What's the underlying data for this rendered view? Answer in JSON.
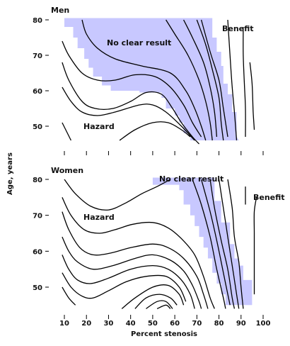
{
  "chart_data": [
    {
      "panel_label": "Men",
      "type": "contour",
      "region_labels": {
        "no_clear": "No clear result",
        "benefit": "Benefit",
        "hazard": "Hazard"
      },
      "ylim": [
        45,
        81
      ],
      "yticks": [
        50,
        60,
        70,
        80
      ],
      "shade_color": "#c8c8ff",
      "shaded_region": [
        [
          10,
          80.5
        ],
        [
          77,
          80.5
        ],
        [
          77,
          75
        ],
        [
          79,
          75
        ],
        [
          79,
          71
        ],
        [
          81,
          71
        ],
        [
          81,
          67
        ],
        [
          82,
          67
        ],
        [
          82,
          62
        ],
        [
          84,
          62
        ],
        [
          84,
          59
        ],
        [
          86,
          59
        ],
        [
          86,
          54
        ],
        [
          88,
          54
        ],
        [
          88,
          47
        ],
        [
          89,
          46
        ],
        [
          67,
          46
        ],
        [
          67,
          48
        ],
        [
          64,
          48
        ],
        [
          64,
          51
        ],
        [
          62,
          51
        ],
        [
          62,
          53
        ],
        [
          60,
          53
        ],
        [
          60,
          55
        ],
        [
          56,
          55
        ],
        [
          56,
          58
        ],
        [
          54,
          58
        ],
        [
          54,
          59.5
        ],
        [
          44,
          59.5
        ],
        [
          44,
          60
        ],
        [
          31,
          60
        ],
        [
          31,
          61.5
        ],
        [
          27,
          61.5
        ],
        [
          27,
          64
        ],
        [
          23,
          64
        ],
        [
          23,
          66.5
        ],
        [
          21,
          66.5
        ],
        [
          21,
          69
        ],
        [
          19,
          69
        ],
        [
          19,
          72
        ],
        [
          16,
          72
        ],
        [
          16,
          75
        ],
        [
          14,
          75
        ],
        [
          14,
          78
        ],
        [
          10,
          78
        ]
      ],
      "contours": [
        [
          [
            9,
            51
          ],
          [
            13,
            46
          ]
        ],
        [
          [
            9,
            61
          ],
          [
            13,
            57
          ],
          [
            18,
            54
          ],
          [
            25,
            53
          ],
          [
            33,
            54
          ],
          [
            44,
            56
          ],
          [
            50,
            56
          ],
          [
            56,
            54
          ],
          [
            63,
            50
          ],
          [
            69,
            46
          ]
        ],
        [
          [
            9,
            68
          ],
          [
            12,
            63
          ],
          [
            18,
            57
          ],
          [
            24,
            55
          ],
          [
            32,
            55
          ],
          [
            40,
            57
          ],
          [
            47,
            59.5
          ],
          [
            54,
            59
          ],
          [
            59,
            55
          ],
          [
            63,
            51
          ],
          [
            68,
            47
          ],
          [
            71,
            45
          ]
        ],
        [
          [
            35,
            46
          ],
          [
            42,
            49
          ],
          [
            50,
            51
          ],
          [
            57,
            51
          ],
          [
            63,
            49
          ],
          [
            67,
            47
          ]
        ],
        [
          [
            9,
            74
          ],
          [
            12,
            70
          ],
          [
            18,
            65
          ],
          [
            25,
            63
          ],
          [
            33,
            63
          ],
          [
            42,
            64.5
          ],
          [
            51,
            64
          ],
          [
            58,
            61
          ],
          [
            64,
            56
          ],
          [
            68,
            51
          ],
          [
            72,
            47
          ]
        ],
        [
          [
            18,
            80
          ],
          [
            20,
            76
          ],
          [
            25,
            72
          ],
          [
            33,
            69
          ],
          [
            45,
            67
          ],
          [
            58,
            65
          ],
          [
            65,
            60
          ],
          [
            69,
            55
          ],
          [
            72,
            50
          ],
          [
            74,
            46
          ]
        ],
        [
          [
            56,
            80
          ],
          [
            60,
            76
          ],
          [
            66,
            70
          ],
          [
            71,
            63
          ],
          [
            74,
            57
          ],
          [
            76,
            51
          ],
          [
            77,
            46
          ]
        ],
        [
          [
            64,
            80
          ],
          [
            68,
            75
          ],
          [
            73,
            68
          ],
          [
            76,
            61
          ],
          [
            78,
            54
          ],
          [
            79,
            47
          ]
        ],
        [
          [
            70,
            80
          ],
          [
            74,
            73
          ],
          [
            77,
            66
          ],
          [
            80,
            58
          ],
          [
            81,
            51
          ],
          [
            82,
            46
          ]
        ],
        [
          [
            72,
            80
          ],
          [
            76,
            71
          ],
          [
            80,
            63
          ],
          [
            82,
            55
          ],
          [
            84,
            47
          ]
        ],
        [
          [
            84,
            80
          ],
          [
            85,
            70
          ],
          [
            86,
            61
          ],
          [
            87,
            54
          ],
          [
            88,
            46
          ]
        ],
        [
          [
            91,
            78
          ],
          [
            91,
            70
          ],
          [
            91.5,
            62
          ],
          [
            92,
            55
          ],
          [
            92,
            47
          ]
        ],
        [
          [
            94,
            68
          ],
          [
            95,
            62
          ],
          [
            95.5,
            54
          ],
          [
            96,
            49
          ]
        ]
      ]
    },
    {
      "panel_label": "Women",
      "type": "contour",
      "region_labels": {
        "no_clear": "No clear result",
        "benefit": "Benefit",
        "hazard": "Hazard"
      },
      "ylim": [
        43,
        81
      ],
      "yticks": [
        50,
        60,
        70,
        80
      ],
      "shade_color": "#c8c8ff",
      "shaded_region": [
        [
          50,
          80.5
        ],
        [
          78,
          80.5
        ],
        [
          78,
          74
        ],
        [
          81,
          74
        ],
        [
          81,
          68
        ],
        [
          85,
          68
        ],
        [
          85,
          62
        ],
        [
          87,
          62
        ],
        [
          87,
          58
        ],
        [
          89,
          58
        ],
        [
          89,
          56
        ],
        [
          91,
          56
        ],
        [
          91,
          52
        ],
        [
          95,
          52
        ],
        [
          95,
          45
        ],
        [
          83,
          45
        ],
        [
          83,
          48
        ],
        [
          81,
          48
        ],
        [
          81,
          51
        ],
        [
          79,
          51
        ],
        [
          79,
          54
        ],
        [
          77,
          54
        ],
        [
          77,
          58
        ],
        [
          75,
          58
        ],
        [
          75,
          61
        ],
        [
          73,
          61
        ],
        [
          73,
          64
        ],
        [
          71,
          64
        ],
        [
          71,
          67
        ],
        [
          69,
          67
        ],
        [
          69,
          70
        ],
        [
          67,
          70
        ],
        [
          67,
          73
        ],
        [
          64,
          73
        ],
        [
          64,
          77
        ],
        [
          62,
          77
        ],
        [
          62,
          78.5
        ],
        [
          50,
          78.5
        ]
      ],
      "contours": [
        [
          [
            10,
            80
          ],
          [
            15,
            76
          ],
          [
            22,
            72.5
          ],
          [
            30,
            71.5
          ],
          [
            38,
            73.5
          ],
          [
            45,
            76
          ],
          [
            52,
            78
          ],
          [
            58,
            80
          ]
        ],
        [
          [
            9,
            75
          ],
          [
            13,
            70
          ],
          [
            19,
            66
          ],
          [
            26,
            65
          ],
          [
            33,
            66
          ],
          [
            41,
            67.5
          ],
          [
            50,
            68
          ],
          [
            57,
            66.5
          ],
          [
            63,
            63.5
          ],
          [
            69,
            59
          ],
          [
            73,
            53
          ],
          [
            76,
            47
          ],
          [
            78,
            44
          ]
        ],
        [
          [
            9,
            71
          ],
          [
            12,
            66
          ],
          [
            17,
            61
          ],
          [
            23,
            59
          ],
          [
            31,
            59.5
          ],
          [
            40,
            61
          ],
          [
            50,
            62
          ],
          [
            57,
            61
          ],
          [
            64,
            58
          ],
          [
            70,
            53
          ],
          [
            73,
            48
          ],
          [
            75,
            44
          ]
        ],
        [
          [
            9,
            64
          ],
          [
            12,
            60
          ],
          [
            16,
            57
          ],
          [
            23,
            55
          ],
          [
            32,
            56
          ],
          [
            42,
            58
          ],
          [
            50,
            59
          ],
          [
            58,
            57.5
          ],
          [
            64,
            54.5
          ],
          [
            68,
            50.5
          ],
          [
            71,
            46
          ],
          [
            72,
            44
          ]
        ],
        [
          [
            9,
            59
          ],
          [
            12,
            55
          ],
          [
            16,
            52
          ],
          [
            22,
            51
          ],
          [
            30,
            52.5
          ],
          [
            40,
            55
          ],
          [
            50,
            56
          ],
          [
            57,
            55
          ],
          [
            63,
            52
          ],
          [
            67,
            48
          ],
          [
            69,
            44
          ]
        ],
        [
          [
            9,
            54
          ],
          [
            13,
            50
          ],
          [
            18,
            47.5
          ],
          [
            23,
            47
          ],
          [
            30,
            49
          ],
          [
            38,
            51.5
          ],
          [
            47,
            53
          ],
          [
            56,
            53
          ],
          [
            62,
            50
          ],
          [
            65,
            46
          ]
        ],
        [
          [
            9,
            50
          ],
          [
            12,
            47
          ],
          [
            15,
            45
          ]
        ],
        [
          [
            36,
            44
          ],
          [
            42,
            47
          ],
          [
            50,
            50
          ],
          [
            57,
            50.5
          ],
          [
            62,
            48
          ],
          [
            64,
            45
          ]
        ],
        [
          [
            42,
            44
          ],
          [
            47,
            47
          ],
          [
            53,
            48
          ],
          [
            58,
            47
          ],
          [
            61,
            45
          ]
        ],
        [
          [
            47,
            44
          ],
          [
            52,
            46
          ],
          [
            56,
            46
          ],
          [
            59,
            44
          ]
        ],
        [
          [
            52,
            44
          ],
          [
            56,
            45
          ],
          [
            58,
            44
          ]
        ],
        [
          [
            68,
            80
          ],
          [
            72,
            73
          ],
          [
            76,
            64
          ],
          [
            79,
            55
          ],
          [
            82,
            47
          ],
          [
            83,
            44
          ]
        ],
        [
          [
            72,
            80
          ],
          [
            76,
            71
          ],
          [
            79,
            63
          ],
          [
            82,
            54
          ],
          [
            85,
            45
          ]
        ],
        [
          [
            76,
            80
          ],
          [
            78,
            72
          ],
          [
            81,
            63
          ],
          [
            84,
            55
          ],
          [
            86,
            47
          ],
          [
            87,
            44
          ]
        ],
        [
          [
            80,
            80
          ],
          [
            82,
            72
          ],
          [
            84,
            64
          ],
          [
            86,
            56
          ],
          [
            88,
            48
          ],
          [
            89,
            44
          ]
        ],
        [
          [
            84,
            80
          ],
          [
            86,
            72
          ],
          [
            87,
            64
          ],
          [
            89,
            57
          ],
          [
            90,
            50
          ],
          [
            91,
            44
          ]
        ],
        [
          [
            92,
            78
          ],
          [
            92,
            73
          ]
        ],
        [
          [
            97,
            75
          ],
          [
            96,
            71
          ],
          [
            96,
            65
          ],
          [
            96,
            59
          ],
          [
            96,
            53
          ],
          [
            96,
            48
          ]
        ]
      ]
    }
  ],
  "axes": {
    "ylabel": "Age, years",
    "xlabel": "Percent stenosis",
    "xticks": [
      10,
      20,
      30,
      40,
      50,
      60,
      70,
      80,
      90,
      100
    ],
    "xlim": [
      10,
      100
    ]
  }
}
